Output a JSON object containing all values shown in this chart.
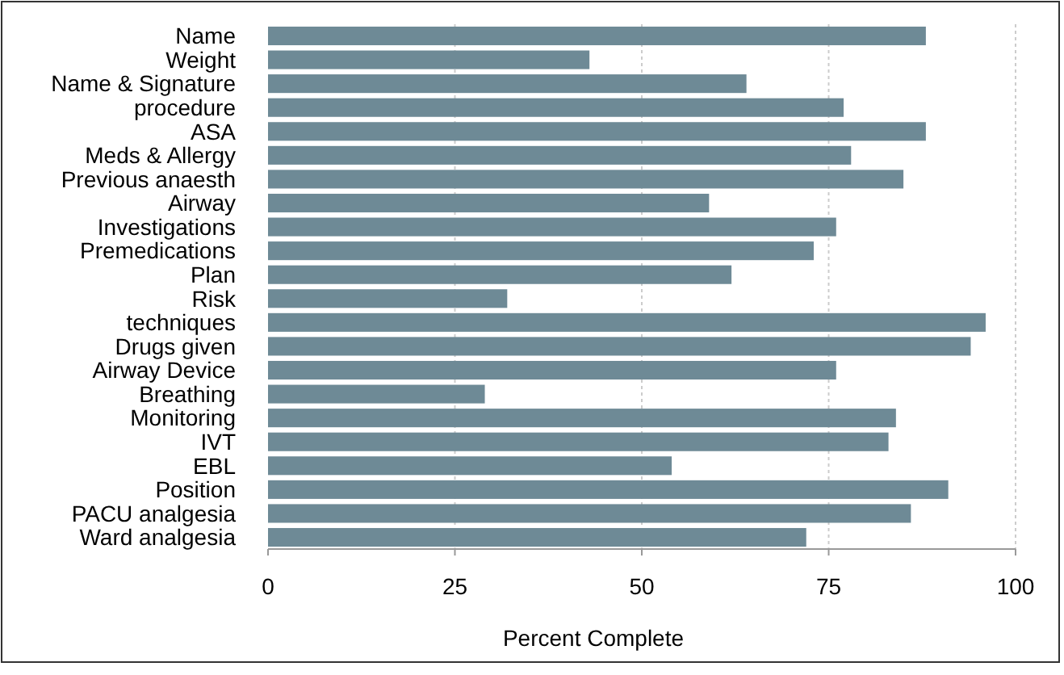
{
  "chart_data": {
    "type": "bar",
    "orientation": "horizontal",
    "xlabel": "Percent Complete",
    "categories": [
      "Name",
      "Weight",
      "Name & Signature",
      "procedure",
      "ASA",
      "Meds & Allergy",
      "Previous anaesth",
      "Airway",
      "Investigations",
      "Premedications",
      "Plan",
      "Risk",
      "techniques",
      "Drugs given",
      "Airway Device",
      "Breathing",
      "Monitoring",
      "IVT",
      "EBL",
      "Position",
      "PACU analgesia",
      "Ward analgesia"
    ],
    "values": [
      88,
      43,
      64,
      77,
      88,
      78,
      85,
      59,
      76,
      73,
      62,
      32,
      96,
      94,
      76,
      29,
      84,
      83,
      54,
      91,
      86,
      72
    ],
    "color": "#6e8a96",
    "xlim": [
      0,
      100
    ],
    "xticks": [
      0,
      25,
      50,
      75,
      100
    ],
    "grid": "x"
  }
}
